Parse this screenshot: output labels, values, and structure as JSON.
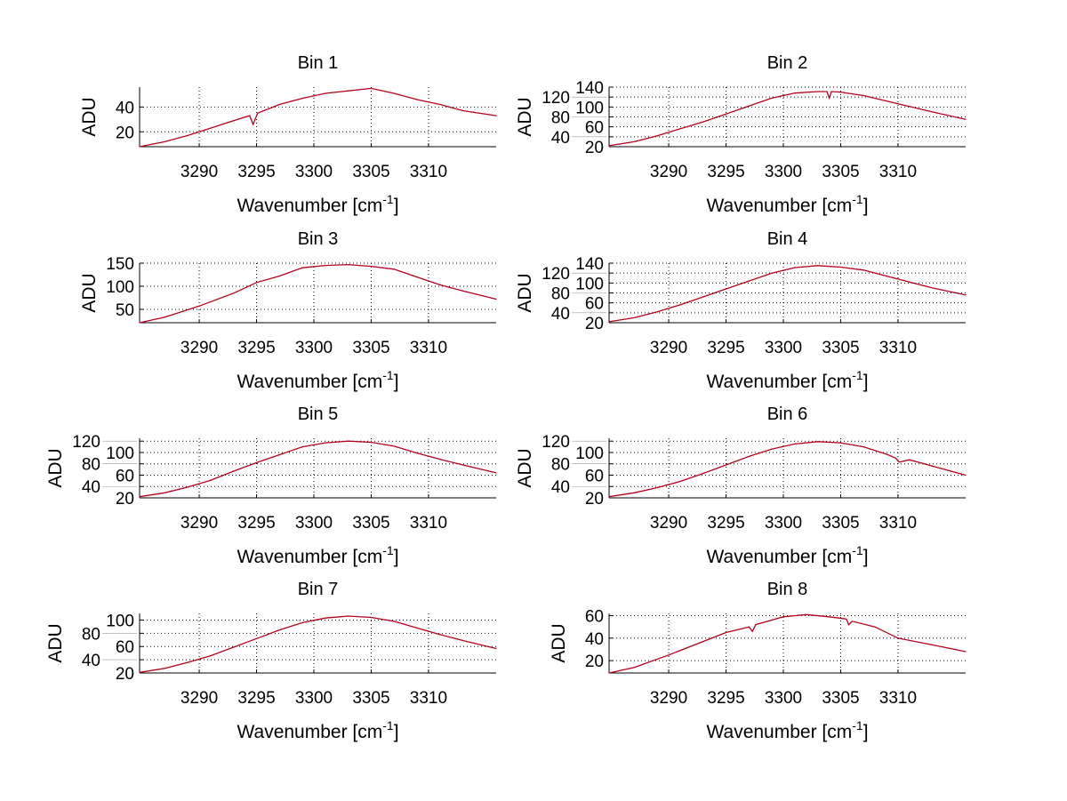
{
  "chart_data": [
    {
      "type": "line",
      "title": "Bin 1",
      "ylabel": "ADU",
      "xlabel": {
        "text": "Wavenumber [cm",
        "sup": "-1",
        "end": "]"
      },
      "xlim": [
        3284.8,
        3315.9
      ],
      "ylim": [
        8,
        56
      ],
      "xticks": [
        3290,
        3295,
        3300,
        3305,
        3310
      ],
      "yticks": [
        20,
        40
      ],
      "grid": true,
      "x": [
        3284.8,
        3287,
        3289,
        3291,
        3293,
        3294.4,
        3294.7,
        3295.1,
        3297,
        3299,
        3301,
        3303,
        3305,
        3307,
        3309,
        3311,
        3313,
        3315.9
      ],
      "y": [
        8,
        12,
        17,
        23,
        29,
        33,
        26,
        35,
        42,
        47,
        51,
        53,
        55,
        51,
        46,
        42,
        37,
        33
      ]
    },
    {
      "type": "line",
      "title": "Bin 2",
      "ylabel": "ADU",
      "xlabel": {
        "text": "Wavenumber [cm",
        "sup": "-1",
        "end": "]"
      },
      "xlim": [
        3284.8,
        3315.9
      ],
      "ylim": [
        20,
        140
      ],
      "xticks": [
        3290,
        3295,
        3300,
        3305,
        3310
      ],
      "yticks": [
        20,
        40,
        60,
        80,
        100,
        120,
        140
      ],
      "grid": true,
      "x": [
        3284.8,
        3287,
        3289,
        3291,
        3293,
        3295,
        3297,
        3299,
        3301,
        3303,
        3303.8,
        3304,
        3304.2,
        3305,
        3307,
        3309,
        3311,
        3313,
        3315.9
      ],
      "y": [
        22,
        30,
        42,
        56,
        70,
        86,
        102,
        118,
        128,
        131,
        131,
        118,
        131,
        130,
        123,
        112,
        101,
        90,
        75
      ]
    },
    {
      "type": "line",
      "title": "Bin 3",
      "ylabel": "ADU",
      "xlabel": {
        "text": "Wavenumber [cm",
        "sup": "-1",
        "end": "]"
      },
      "xlim": [
        3284.8,
        3315.9
      ],
      "ylim": [
        21,
        150
      ],
      "xticks": [
        3290,
        3295,
        3300,
        3305,
        3310
      ],
      "yticks": [
        50,
        100,
        150
      ],
      "grid": true,
      "x": [
        3284.8,
        3287,
        3290,
        3293,
        3295,
        3297,
        3299,
        3301,
        3303,
        3305,
        3307,
        3309,
        3311,
        3313,
        3315.9
      ],
      "y": [
        21,
        33,
        57,
        85,
        108,
        122,
        140,
        145,
        147,
        143,
        137,
        120,
        103,
        90,
        72
      ]
    },
    {
      "type": "line",
      "title": "Bin 4",
      "ylabel": "ADU",
      "xlabel": {
        "text": "Wavenumber [cm",
        "sup": "-1",
        "end": "]"
      },
      "xlim": [
        3284.8,
        3315.9
      ],
      "ylim": [
        20,
        140
      ],
      "xticks": [
        3290,
        3295,
        3300,
        3305,
        3310
      ],
      "yticks": [
        20,
        40,
        60,
        80,
        100,
        120,
        140
      ],
      "grid": true,
      "x": [
        3284.8,
        3287,
        3289,
        3291,
        3293,
        3295,
        3297,
        3299,
        3301,
        3303,
        3305,
        3307,
        3309,
        3311,
        3313,
        3315.9
      ],
      "y": [
        22,
        30,
        42,
        56,
        72,
        88,
        104,
        120,
        131,
        135,
        132,
        126,
        114,
        102,
        90,
        76
      ]
    },
    {
      "type": "line",
      "title": "Bin 5",
      "ylabel": "ADU",
      "xlabel": {
        "text": "Wavenumber [cm",
        "sup": "-1",
        "end": "]"
      },
      "xlim": [
        3284.8,
        3315.9
      ],
      "ylim": [
        20,
        125
      ],
      "xticks": [
        3290,
        3295,
        3300,
        3305,
        3310
      ],
      "yticks": [
        20,
        40,
        60,
        80,
        100,
        120
      ],
      "grid": true,
      "x": [
        3284.8,
        3287,
        3289,
        3291,
        3293,
        3295,
        3297,
        3299,
        3301,
        3303,
        3305,
        3307,
        3309,
        3311,
        3313,
        3315.9
      ],
      "y": [
        22,
        29,
        39,
        51,
        67,
        82,
        96,
        110,
        117,
        120,
        118,
        111,
        99,
        88,
        78,
        64
      ]
    },
    {
      "type": "line",
      "title": "Bin 6",
      "ylabel": "ADU",
      "xlabel": {
        "text": "Wavenumber [cm",
        "sup": "-1",
        "end": "]"
      },
      "xlim": [
        3284.8,
        3315.9
      ],
      "ylim": [
        20,
        125
      ],
      "xticks": [
        3290,
        3295,
        3300,
        3305,
        3310
      ],
      "yticks": [
        20,
        40,
        60,
        80,
        100,
        120
      ],
      "grid": true,
      "x": [
        3284.8,
        3287,
        3289,
        3291,
        3293,
        3295,
        3297,
        3299,
        3301,
        3303,
        3305,
        3307,
        3309,
        3309.8,
        3310.1,
        3311,
        3313,
        3315.9
      ],
      "y": [
        22,
        29,
        38,
        49,
        63,
        78,
        93,
        106,
        115,
        119,
        117,
        110,
        97,
        90,
        83,
        87,
        76,
        60
      ]
    },
    {
      "type": "line",
      "title": "Bin 7",
      "ylabel": "ADU",
      "xlabel": {
        "text": "Wavenumber [cm",
        "sup": "-1",
        "end": "]"
      },
      "xlim": [
        3284.8,
        3315.9
      ],
      "ylim": [
        20,
        110
      ],
      "xticks": [
        3290,
        3295,
        3300,
        3305,
        3310
      ],
      "yticks": [
        20,
        40,
        60,
        80,
        100
      ],
      "grid": true,
      "x": [
        3284.8,
        3287,
        3289,
        3291,
        3293,
        3295,
        3297,
        3299,
        3301,
        3303,
        3305,
        3307,
        3309,
        3311,
        3313,
        3315.9
      ],
      "y": [
        21,
        27,
        36,
        46,
        59,
        72,
        85,
        96,
        103,
        106,
        104,
        98,
        88,
        78,
        69,
        57
      ]
    },
    {
      "type": "line",
      "title": "Bin 8",
      "ylabel": "ADU",
      "xlabel": {
        "text": "Wavenumber [cm",
        "sup": "-1",
        "end": "]"
      },
      "xlim": [
        3284.8,
        3315.9
      ],
      "ylim": [
        9,
        62
      ],
      "xticks": [
        3290,
        3295,
        3300,
        3305,
        3310
      ],
      "yticks": [
        20,
        40,
        60
      ],
      "grid": true,
      "x": [
        3284.8,
        3287,
        3290,
        3293,
        3295,
        3297,
        3297.3,
        3297.6,
        3300,
        3302,
        3304,
        3305.5,
        3305.7,
        3306,
        3308,
        3310,
        3313,
        3315.9
      ],
      "y": [
        9,
        14,
        25,
        37,
        45,
        50,
        46,
        52,
        59,
        61,
        59,
        57,
        52,
        55,
        50,
        40,
        34,
        28
      ]
    }
  ],
  "colors": {
    "line": "#b3001b",
    "grid": "#000000",
    "axis": "#000000"
  }
}
